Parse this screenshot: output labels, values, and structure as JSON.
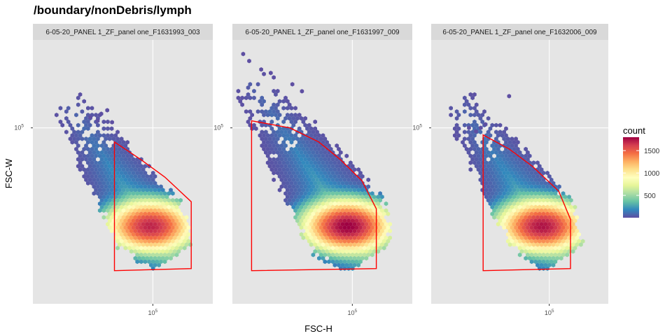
{
  "chart_data": {
    "type": "heatmap",
    "subtype": "hexbin-facets",
    "title": "/boundary/nonDebris/lymph",
    "xlabel": "FSC-H",
    "ylabel": "FSC-W",
    "x_tick": {
      "base": "10",
      "exp": "5"
    },
    "y_tick": {
      "base": "10",
      "exp": "5"
    },
    "scale": "log",
    "xlim_log10": [
      4.5,
      5.25
    ],
    "ylim_log10": [
      4.75,
      5.125
    ],
    "legend": {
      "title": "count",
      "position": "right",
      "ticks": [
        500,
        1000,
        1500
      ],
      "range": [
        1,
        1800
      ],
      "colors": [
        "#5E4FA2",
        "#3288BD",
        "#66C2A5",
        "#ABDDA4",
        "#E6F598",
        "#FFFFBF",
        "#FEE08B",
        "#FDAE61",
        "#F46D43",
        "#D53E4F",
        "#9E0142"
      ]
    },
    "panel_background": "#E5E5E5",
    "strip_background": "#D9D9D9",
    "gridline_color": "#FFFFFF",
    "gate_color": "#FF0000",
    "panels": [
      {
        "strip": "6-05-20_PANEL 1_ZF_panel one_F1631993_003",
        "peak_count": 1450,
        "core": {
          "x": 4.99,
          "y": 4.86
        },
        "gate": [
          [
            4.84,
            4.98
          ],
          [
            4.95,
            4.955
          ],
          [
            5.05,
            4.93
          ],
          [
            5.16,
            4.895
          ],
          [
            5.16,
            4.8
          ],
          [
            4.84,
            4.797
          ]
        ],
        "outliers": [
          [
            4.74,
            5.015
          ],
          [
            4.77,
            5.01
          ],
          [
            4.785,
            5.02
          ],
          [
            4.81,
            5.025
          ],
          [
            4.83,
            5.008
          ]
        ]
      },
      {
        "strip": "6-05-20_PANEL 1_ZF_panel one_F1631997_009",
        "peak_count": 1800,
        "core": {
          "x": 4.98,
          "y": 4.86
        },
        "gate": [
          [
            4.58,
            5.01
          ],
          [
            4.74,
            5.0
          ],
          [
            4.86,
            4.98
          ],
          [
            4.95,
            4.955
          ],
          [
            5.04,
            4.925
          ],
          [
            5.1,
            4.885
          ],
          [
            5.1,
            4.8
          ],
          [
            4.58,
            4.797
          ]
        ],
        "outliers": [
          [
            4.545,
            5.105
          ],
          [
            4.57,
            5.095
          ],
          [
            4.62,
            5.083
          ],
          [
            4.66,
            5.078
          ],
          [
            4.75,
            5.062
          ],
          [
            4.79,
            5.052
          ]
        ]
      },
      {
        "strip": "6-05-20_PANEL 1_ZF_panel one_F1632006_009",
        "peak_count": 1600,
        "core": {
          "x": 4.97,
          "y": 4.86
        },
        "gate": [
          [
            4.72,
            4.99
          ],
          [
            4.83,
            4.97
          ],
          [
            4.93,
            4.945
          ],
          [
            5.04,
            4.91
          ],
          [
            5.09,
            4.87
          ],
          [
            5.09,
            4.8
          ],
          [
            4.72,
            4.797
          ]
        ],
        "outliers": [
          [
            4.66,
            5.0
          ],
          [
            4.71,
            5.0
          ],
          [
            4.73,
            5.005
          ],
          [
            4.69,
            4.995
          ],
          [
            4.83,
            5.045
          ]
        ]
      }
    ]
  }
}
